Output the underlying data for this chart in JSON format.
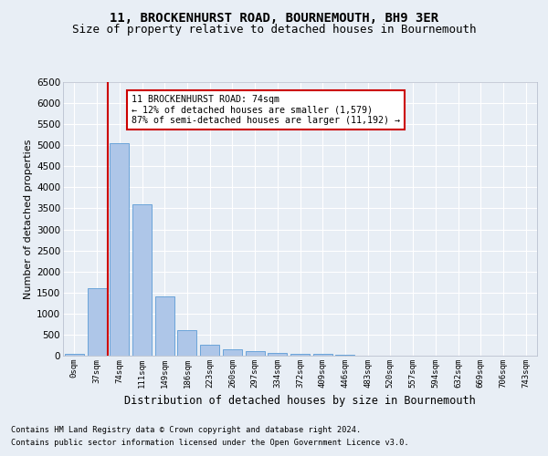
{
  "title1": "11, BROCKENHURST ROAD, BOURNEMOUTH, BH9 3ER",
  "title2": "Size of property relative to detached houses in Bournemouth",
  "xlabel": "Distribution of detached houses by size in Bournemouth",
  "ylabel": "Number of detached properties",
  "footer1": "Contains HM Land Registry data © Crown copyright and database right 2024.",
  "footer2": "Contains public sector information licensed under the Open Government Licence v3.0.",
  "annotation_line1": "11 BROCKENHURST ROAD: 74sqm",
  "annotation_line2": "← 12% of detached houses are smaller (1,579)",
  "annotation_line3": "87% of semi-detached houses are larger (11,192) →",
  "bar_categories": [
    "0sqm",
    "37sqm",
    "74sqm",
    "111sqm",
    "149sqm",
    "186sqm",
    "223sqm",
    "260sqm",
    "297sqm",
    "334sqm",
    "372sqm",
    "409sqm",
    "446sqm",
    "483sqm",
    "520sqm",
    "557sqm",
    "594sqm",
    "632sqm",
    "669sqm",
    "706sqm",
    "743sqm"
  ],
  "bar_values": [
    50,
    1600,
    5050,
    3600,
    1400,
    600,
    270,
    150,
    100,
    60,
    50,
    40,
    20,
    8,
    5,
    3,
    2,
    1,
    1,
    0,
    0
  ],
  "bar_color": "#aec6e8",
  "bar_edge_color": "#5b9bd5",
  "red_line_index": 2,
  "ylim": [
    0,
    6500
  ],
  "yticks": [
    0,
    500,
    1000,
    1500,
    2000,
    2500,
    3000,
    3500,
    4000,
    4500,
    5000,
    5500,
    6000,
    6500
  ],
  "annotation_box_color": "#ffffff",
  "annotation_box_edge": "#cc0000",
  "bg_color": "#e8eef5",
  "grid_color": "#ffffff",
  "title1_fontsize": 10,
  "title2_fontsize": 9
}
